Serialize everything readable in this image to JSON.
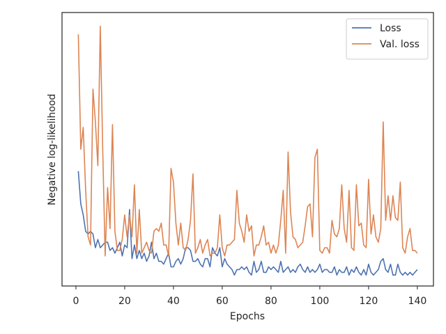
{
  "chart_data": {
    "type": "line",
    "xlabel": "Epochs",
    "ylabel": "Negative log-likelihood",
    "x": [
      1,
      2,
      3,
      4,
      5,
      6,
      7,
      8,
      9,
      10,
      11,
      12,
      13,
      14,
      15,
      16,
      17,
      18,
      19,
      20,
      21,
      22,
      23,
      24,
      25,
      26,
      27,
      28,
      29,
      30,
      31,
      32,
      33,
      34,
      35,
      36,
      37,
      38,
      39,
      40,
      41,
      42,
      43,
      44,
      45,
      46,
      47,
      48,
      49,
      50,
      51,
      52,
      53,
      54,
      55,
      56,
      57,
      58,
      59,
      60,
      61,
      62,
      63,
      64,
      65,
      66,
      67,
      68,
      69,
      70,
      71,
      72,
      73,
      74,
      75,
      76,
      77,
      78,
      79,
      80,
      81,
      82,
      83,
      84,
      85,
      86,
      87,
      88,
      89,
      90,
      91,
      92,
      93,
      94,
      95,
      96,
      97,
      98,
      99,
      100,
      101,
      102,
      103,
      104,
      105,
      106,
      107,
      108,
      109,
      110,
      111,
      112,
      113,
      114,
      115,
      116,
      117,
      118,
      119,
      120,
      121,
      122,
      123,
      124,
      125,
      126,
      127,
      128,
      129,
      130,
      131,
      132,
      133,
      134,
      135,
      136,
      137,
      138,
      139,
      140
    ],
    "series": [
      {
        "name": "Loss",
        "color": "#4c72b0",
        "values": [
          42,
          30,
          26,
          20,
          19,
          20,
          19,
          14,
          17,
          14,
          15,
          16,
          16,
          13,
          14,
          12,
          14,
          16,
          11,
          15,
          14,
          28,
          10,
          15,
          10,
          13,
          10,
          12,
          9,
          11,
          16,
          10,
          12,
          9,
          9,
          8,
          10,
          12,
          7,
          7,
          9,
          10,
          8,
          10,
          14,
          14,
          13,
          9,
          9,
          10,
          8,
          7,
          10,
          10,
          7,
          14,
          12,
          11,
          14,
          7,
          10,
          8,
          7,
          6,
          4,
          6,
          6,
          7,
          6,
          7,
          5,
          4,
          9,
          5,
          6,
          9,
          5,
          5,
          7,
          6,
          7,
          6,
          5,
          9,
          5,
          6,
          7,
          5,
          6,
          5,
          7,
          8,
          6,
          5,
          7,
          5,
          6,
          5,
          6,
          8,
          5,
          6,
          6,
          5,
          5,
          7,
          4,
          6,
          5,
          5,
          7,
          4,
          6,
          5,
          7,
          5,
          4,
          6,
          4,
          8,
          5,
          4,
          5,
          6,
          9,
          10,
          6,
          5,
          8,
          4,
          4,
          8,
          5,
          4,
          5,
          4,
          5,
          4,
          5,
          6
        ]
      },
      {
        "name": "Val. loss",
        "color": "#dd8452",
        "values": [
          92,
          50,
          58,
          35,
          18,
          15,
          72,
          60,
          44,
          95,
          50,
          11,
          36,
          21,
          59,
          20,
          13,
          13,
          17,
          26,
          18,
          26,
          18,
          37,
          12,
          28,
          12,
          14,
          16,
          13,
          12,
          20,
          21,
          20,
          23,
          15,
          15,
          11,
          43,
          38,
          23,
          15,
          23,
          14,
          13,
          17,
          24,
          41,
          12,
          14,
          17,
          12,
          15,
          17,
          11,
          12,
          12,
          14,
          26,
          14,
          11,
          15,
          15,
          16,
          17,
          35,
          23,
          20,
          16,
          26,
          20,
          22,
          11,
          15,
          15,
          18,
          22,
          15,
          16,
          12,
          15,
          12,
          15,
          24,
          35,
          12,
          49,
          27,
          18,
          17,
          14,
          15,
          16,
          22,
          29,
          30,
          18,
          47,
          50,
          13,
          12,
          14,
          14,
          12,
          24,
          19,
          18,
          21,
          37,
          21,
          16,
          35,
          14,
          13,
          37,
          22,
          23,
          15,
          14,
          39,
          19,
          26,
          18,
          16,
          21,
          60,
          24,
          33,
          24,
          33,
          25,
          24,
          38,
          14,
          12,
          18,
          21,
          13,
          13,
          12
        ]
      }
    ],
    "xlim": [
      -5.7,
      146.6
    ],
    "xticks": [
      0,
      20,
      40,
      60,
      80,
      100,
      120,
      140
    ],
    "ylim": [
      0,
      100
    ],
    "legend": "upper right"
  }
}
